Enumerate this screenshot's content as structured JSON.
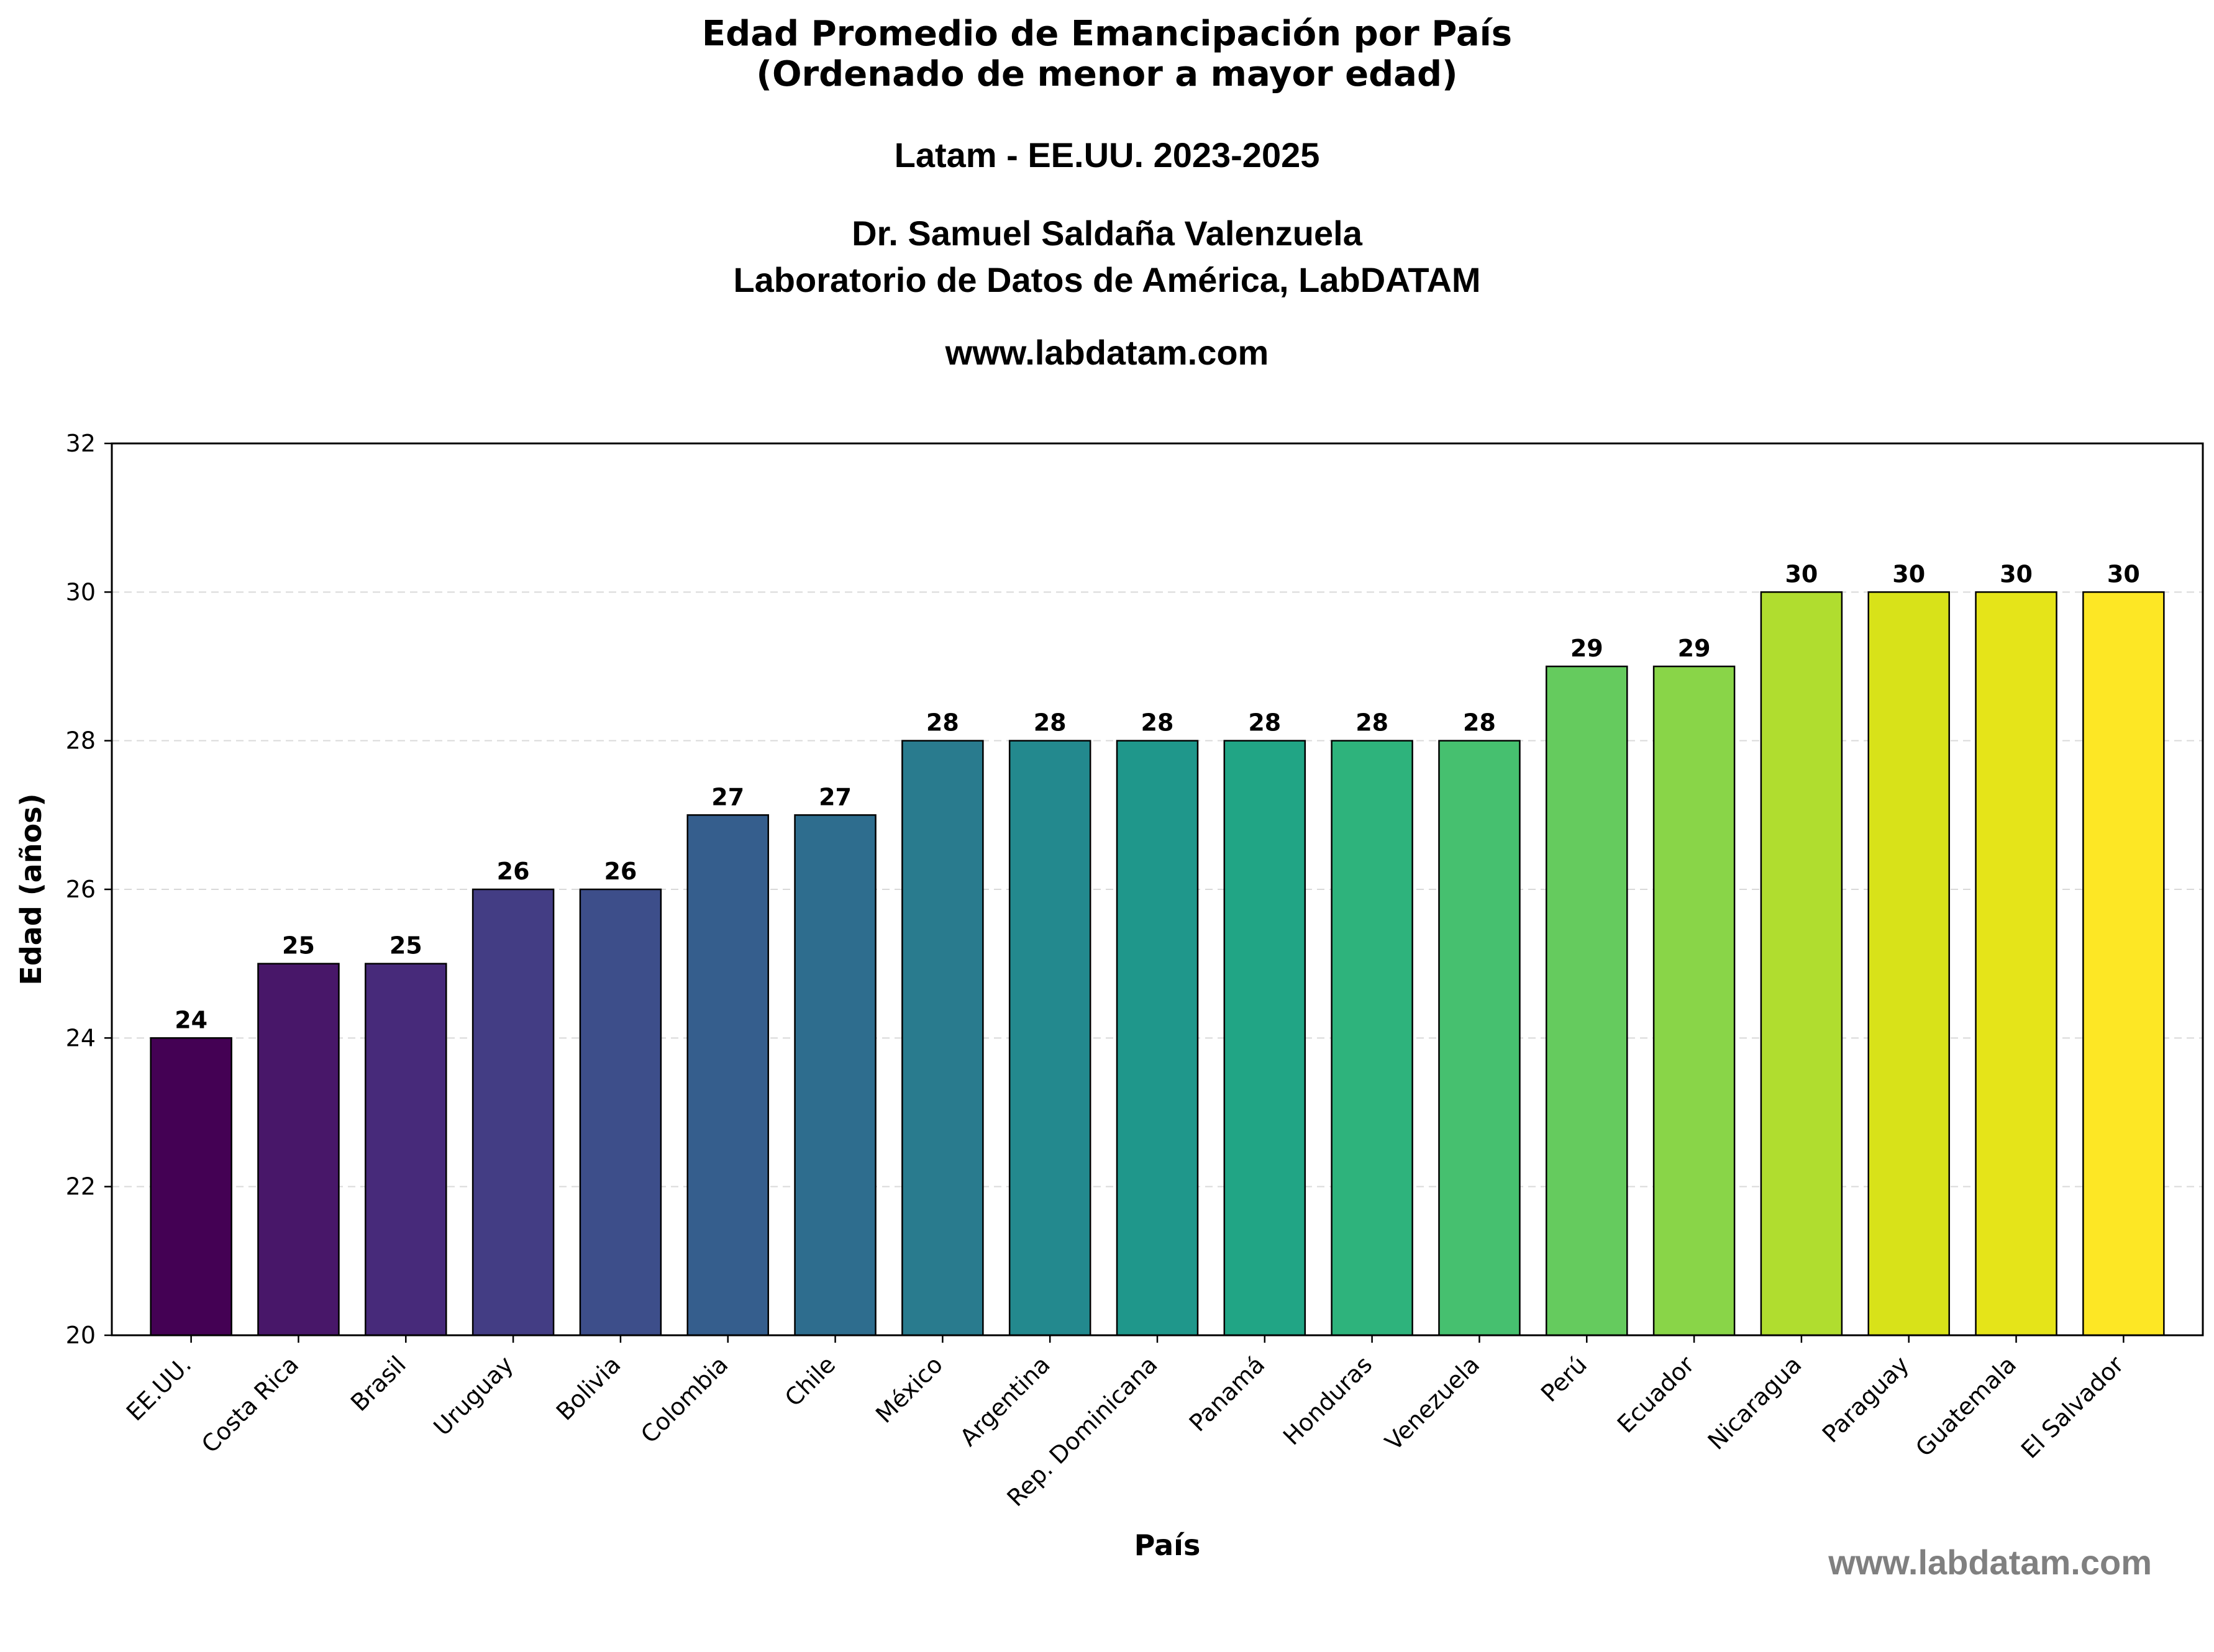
{
  "header": {
    "title_line1": "Edad Promedio de Emancipación por País",
    "title_line2": "(Ordenado de menor a mayor edad)",
    "subtitle": "Latam - EE.UU. 2023-2025",
    "author": "Dr. Samuel Saldaña Valenzuela",
    "organization": "Laboratorio de Datos de América, LabDATAM",
    "website": "www.labdatam.com"
  },
  "watermark": "www.labdatam.com",
  "chart_data": {
    "type": "bar",
    "title": "Edad Promedio de Emancipación por País (Ordenado de menor a mayor edad)",
    "xlabel": "País",
    "ylabel": "Edad (años)",
    "ylim": [
      20,
      32
    ],
    "yticks": [
      20,
      22,
      24,
      26,
      28,
      30,
      32
    ],
    "grid": "y-dashed",
    "categories": [
      "EE.UU.",
      "Costa Rica",
      "Brasil",
      "Uruguay",
      "Bolivia",
      "Colombia",
      "Chile",
      "México",
      "Argentina",
      "Rep. Dominicana",
      "Panamá",
      "Honduras",
      "Venezuela",
      "Perú",
      "Ecuador",
      "Nicaragua",
      "Paraguay",
      "Guatemala",
      "El Salvador"
    ],
    "values": [
      24,
      25,
      25,
      26,
      26,
      27,
      27,
      28,
      28,
      28,
      28,
      28,
      28,
      29,
      29,
      30,
      30,
      30,
      30
    ],
    "colors": [
      "#440154",
      "#481769",
      "#472a7a",
      "#433d84",
      "#3d4e8a",
      "#355e8d",
      "#2e6d8e",
      "#297b8e",
      "#23898e",
      "#1f978b",
      "#21a585",
      "#2eb37c",
      "#46c06f",
      "#65cb5e",
      "#89d548",
      "#b0dd2f",
      "#d8e219",
      "#e5e419",
      "#fde725"
    ]
  }
}
